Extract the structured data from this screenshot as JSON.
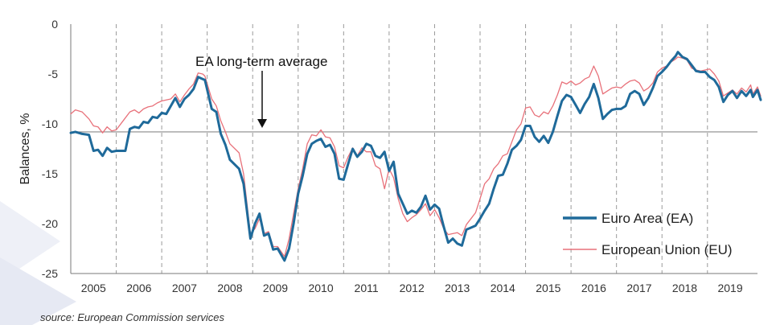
{
  "chart_data": {
    "type": "line",
    "ylabel": "Balances, %",
    "ylim": [
      -25,
      0
    ],
    "yticks": [
      0,
      -5,
      -10,
      -15,
      -20,
      -25
    ],
    "xlim": [
      2004.5,
      2019.6
    ],
    "x_tick_labels": [
      "2005",
      "2006",
      "2007",
      "2008",
      "2009",
      "2010",
      "2011",
      "2012",
      "2013",
      "2014",
      "2015",
      "2016",
      "2017",
      "2018",
      "2019"
    ],
    "grid": "dashed vertical lines at year boundaries",
    "legend_position": "bottom-right",
    "reference_line": {
      "value": -10.8,
      "label": "EA long-term average"
    },
    "series": [
      {
        "name": "Euro Area (EA)",
        "color": "#1f6a9a",
        "points": [
          [
            2004.5,
            -10.9
          ],
          [
            2004.6,
            -10.8
          ],
          [
            2004.75,
            -11.0
          ],
          [
            2004.9,
            -11.1
          ],
          [
            2005.0,
            -12.7
          ],
          [
            2005.1,
            -12.6
          ],
          [
            2005.2,
            -13.2
          ],
          [
            2005.3,
            -12.4
          ],
          [
            2005.4,
            -12.8
          ],
          [
            2005.5,
            -12.7
          ],
          [
            2005.7,
            -12.7
          ],
          [
            2005.8,
            -10.5
          ],
          [
            2005.9,
            -10.3
          ],
          [
            2006.0,
            -10.4
          ],
          [
            2006.1,
            -9.8
          ],
          [
            2006.2,
            -9.9
          ],
          [
            2006.3,
            -9.3
          ],
          [
            2006.4,
            -9.4
          ],
          [
            2006.5,
            -8.9
          ],
          [
            2006.6,
            -9.0
          ],
          [
            2006.7,
            -8.2
          ],
          [
            2006.8,
            -7.4
          ],
          [
            2006.9,
            -8.3
          ],
          [
            2007.0,
            -7.5
          ],
          [
            2007.1,
            -7.1
          ],
          [
            2007.2,
            -6.5
          ],
          [
            2007.3,
            -5.3
          ],
          [
            2007.4,
            -5.5
          ],
          [
            2007.45,
            -5.6
          ],
          [
            2007.6,
            -8.5
          ],
          [
            2007.7,
            -8.8
          ],
          [
            2007.8,
            -11.0
          ],
          [
            2007.9,
            -12.1
          ],
          [
            2008.0,
            -13.6
          ],
          [
            2008.2,
            -14.5
          ],
          [
            2008.3,
            -16.0
          ],
          [
            2008.45,
            -21.5
          ],
          [
            2008.55,
            -20.0
          ],
          [
            2008.65,
            -19.0
          ],
          [
            2008.75,
            -21.2
          ],
          [
            2008.85,
            -21.0
          ],
          [
            2008.95,
            -22.6
          ],
          [
            2009.05,
            -22.5
          ],
          [
            2009.2,
            -23.7
          ],
          [
            2009.3,
            -22.5
          ],
          [
            2009.4,
            -20.0
          ],
          [
            2009.5,
            -17.0
          ],
          [
            2009.6,
            -15.2
          ],
          [
            2009.7,
            -13.0
          ],
          [
            2009.8,
            -12.0
          ],
          [
            2009.9,
            -11.7
          ],
          [
            2010.0,
            -11.5
          ],
          [
            2010.1,
            -12.3
          ],
          [
            2010.2,
            -12.1
          ],
          [
            2010.3,
            -13.0
          ],
          [
            2010.4,
            -15.5
          ],
          [
            2010.5,
            -15.6
          ],
          [
            2010.6,
            -14.0
          ],
          [
            2010.7,
            -12.5
          ],
          [
            2010.8,
            -13.3
          ],
          [
            2010.9,
            -12.8
          ],
          [
            2011.0,
            -12.0
          ],
          [
            2011.1,
            -12.2
          ],
          [
            2011.2,
            -13.2
          ],
          [
            2011.3,
            -13.4
          ],
          [
            2011.4,
            -12.8
          ],
          [
            2011.5,
            -14.7
          ],
          [
            2011.6,
            -13.8
          ],
          [
            2011.7,
            -17.0
          ],
          [
            2011.8,
            -18.0
          ],
          [
            2011.9,
            -19.0
          ],
          [
            2012.0,
            -18.7
          ],
          [
            2012.1,
            -18.9
          ],
          [
            2012.2,
            -18.3
          ],
          [
            2012.3,
            -17.2
          ],
          [
            2012.4,
            -18.6
          ],
          [
            2012.5,
            -18.1
          ],
          [
            2012.6,
            -18.5
          ],
          [
            2012.7,
            -20.3
          ],
          [
            2012.8,
            -21.9
          ],
          [
            2012.9,
            -21.5
          ],
          [
            2013.0,
            -22.0
          ],
          [
            2013.1,
            -22.2
          ],
          [
            2013.2,
            -20.6
          ],
          [
            2013.3,
            -20.4
          ],
          [
            2013.4,
            -20.2
          ],
          [
            2013.5,
            -19.5
          ],
          [
            2013.6,
            -18.7
          ],
          [
            2013.7,
            -18.0
          ],
          [
            2013.8,
            -16.5
          ],
          [
            2013.9,
            -15.2
          ],
          [
            2014.0,
            -15.1
          ],
          [
            2014.1,
            -14.0
          ],
          [
            2014.2,
            -12.6
          ],
          [
            2014.3,
            -12.2
          ],
          [
            2014.4,
            -11.6
          ],
          [
            2014.5,
            -10.2
          ],
          [
            2014.6,
            -10.2
          ],
          [
            2014.7,
            -11.3
          ],
          [
            2014.8,
            -11.8
          ],
          [
            2014.9,
            -11.2
          ],
          [
            2015.0,
            -11.9
          ],
          [
            2015.1,
            -10.8
          ],
          [
            2015.2,
            -9.2
          ],
          [
            2015.3,
            -7.7
          ],
          [
            2015.4,
            -7.1
          ],
          [
            2015.5,
            -7.3
          ],
          [
            2015.6,
            -8.1
          ],
          [
            2015.7,
            -8.9
          ],
          [
            2015.8,
            -8.0
          ],
          [
            2015.9,
            -7.3
          ],
          [
            2016.0,
            -6.0
          ],
          [
            2016.1,
            -7.4
          ],
          [
            2016.2,
            -9.5
          ],
          [
            2016.3,
            -9.0
          ],
          [
            2016.4,
            -8.6
          ],
          [
            2016.5,
            -8.5
          ],
          [
            2016.6,
            -8.5
          ],
          [
            2016.7,
            -8.2
          ],
          [
            2016.8,
            -7.0
          ],
          [
            2016.9,
            -6.7
          ],
          [
            2017.0,
            -7.0
          ],
          [
            2017.1,
            -8.1
          ],
          [
            2017.2,
            -7.4
          ],
          [
            2017.3,
            -6.4
          ],
          [
            2017.4,
            -5.2
          ],
          [
            2017.5,
            -4.8
          ],
          [
            2017.6,
            -4.3
          ],
          [
            2017.7,
            -3.7
          ],
          [
            2017.8,
            -3.2
          ],
          [
            2017.85,
            -2.8
          ],
          [
            2017.95,
            -3.3
          ],
          [
            2018.05,
            -3.5
          ],
          [
            2018.15,
            -4.1
          ],
          [
            2018.25,
            -4.7
          ],
          [
            2018.35,
            -4.8
          ],
          [
            2018.45,
            -4.8
          ],
          [
            2018.55,
            -5.3
          ],
          [
            2018.65,
            -5.6
          ],
          [
            2018.75,
            -6.3
          ],
          [
            2018.85,
            -7.8
          ],
          [
            2018.95,
            -7.1
          ],
          [
            2019.05,
            -6.7
          ],
          [
            2019.15,
            -7.4
          ],
          [
            2019.25,
            -6.7
          ],
          [
            2019.35,
            -7.2
          ],
          [
            2019.45,
            -6.6
          ],
          [
            2019.5,
            -7.3
          ],
          [
            2019.6,
            -6.6
          ],
          [
            2019.67,
            -7.6
          ]
        ]
      },
      {
        "name": "European Union (EU)",
        "color": "#e8717a",
        "points": [
          [
            2004.5,
            -9.0
          ],
          [
            2004.6,
            -8.6
          ],
          [
            2004.75,
            -8.8
          ],
          [
            2004.9,
            -9.5
          ],
          [
            2005.0,
            -10.2
          ],
          [
            2005.1,
            -10.3
          ],
          [
            2005.2,
            -10.9
          ],
          [
            2005.3,
            -10.3
          ],
          [
            2005.4,
            -10.7
          ],
          [
            2005.5,
            -10.6
          ],
          [
            2005.65,
            -9.7
          ],
          [
            2005.8,
            -8.8
          ],
          [
            2005.9,
            -8.6
          ],
          [
            2006.0,
            -8.9
          ],
          [
            2006.1,
            -8.5
          ],
          [
            2006.2,
            -8.3
          ],
          [
            2006.3,
            -8.2
          ],
          [
            2006.4,
            -7.9
          ],
          [
            2006.5,
            -7.7
          ],
          [
            2006.6,
            -7.6
          ],
          [
            2006.7,
            -7.5
          ],
          [
            2006.8,
            -7.0
          ],
          [
            2006.9,
            -7.8
          ],
          [
            2007.0,
            -7.1
          ],
          [
            2007.1,
            -6.5
          ],
          [
            2007.2,
            -6.0
          ],
          [
            2007.3,
            -4.9
          ],
          [
            2007.4,
            -5.0
          ],
          [
            2007.45,
            -5.2
          ],
          [
            2007.6,
            -7.5
          ],
          [
            2007.7,
            -8.2
          ],
          [
            2007.8,
            -9.7
          ],
          [
            2007.9,
            -10.8
          ],
          [
            2008.0,
            -12.0
          ],
          [
            2008.2,
            -12.9
          ],
          [
            2008.3,
            -15.0
          ],
          [
            2008.45,
            -21.0
          ],
          [
            2008.55,
            -20.5
          ],
          [
            2008.65,
            -19.5
          ],
          [
            2008.75,
            -21.0
          ],
          [
            2008.85,
            -20.8
          ],
          [
            2008.95,
            -22.3
          ],
          [
            2009.05,
            -22.3
          ],
          [
            2009.2,
            -23.3
          ],
          [
            2009.3,
            -21.5
          ],
          [
            2009.4,
            -19.0
          ],
          [
            2009.5,
            -16.5
          ],
          [
            2009.6,
            -14.5
          ],
          [
            2009.7,
            -12.0
          ],
          [
            2009.8,
            -11.1
          ],
          [
            2009.9,
            -11.2
          ],
          [
            2010.0,
            -10.6
          ],
          [
            2010.1,
            -11.3
          ],
          [
            2010.2,
            -11.4
          ],
          [
            2010.3,
            -12.3
          ],
          [
            2010.4,
            -14.2
          ],
          [
            2010.5,
            -14.4
          ],
          [
            2010.6,
            -13.3
          ],
          [
            2010.7,
            -12.4
          ],
          [
            2010.8,
            -13.2
          ],
          [
            2010.9,
            -12.4
          ],
          [
            2011.0,
            -12.8
          ],
          [
            2011.1,
            -12.8
          ],
          [
            2011.2,
            -14.2
          ],
          [
            2011.3,
            -14.5
          ],
          [
            2011.4,
            -16.5
          ],
          [
            2011.5,
            -14.5
          ],
          [
            2011.6,
            -15.4
          ],
          [
            2011.7,
            -17.5
          ],
          [
            2011.8,
            -19.0
          ],
          [
            2011.9,
            -19.8
          ],
          [
            2012.0,
            -19.4
          ],
          [
            2012.1,
            -19.1
          ],
          [
            2012.2,
            -18.6
          ],
          [
            2012.3,
            -18.0
          ],
          [
            2012.4,
            -19.2
          ],
          [
            2012.5,
            -18.6
          ],
          [
            2012.6,
            -19.4
          ],
          [
            2012.7,
            -20.5
          ],
          [
            2012.8,
            -21.1
          ],
          [
            2012.9,
            -21.0
          ],
          [
            2013.0,
            -20.9
          ],
          [
            2013.1,
            -21.2
          ],
          [
            2013.2,
            -20.1
          ],
          [
            2013.3,
            -19.5
          ],
          [
            2013.4,
            -18.9
          ],
          [
            2013.5,
            -17.5
          ],
          [
            2013.6,
            -16.0
          ],
          [
            2013.7,
            -15.5
          ],
          [
            2013.8,
            -14.5
          ],
          [
            2013.9,
            -14.0
          ],
          [
            2014.0,
            -13.2
          ],
          [
            2014.1,
            -13.0
          ],
          [
            2014.2,
            -11.8
          ],
          [
            2014.3,
            -10.6
          ],
          [
            2014.4,
            -10.0
          ],
          [
            2014.5,
            -8.4
          ],
          [
            2014.6,
            -8.3
          ],
          [
            2014.7,
            -9.1
          ],
          [
            2014.8,
            -9.3
          ],
          [
            2014.9,
            -8.8
          ],
          [
            2015.0,
            -9.0
          ],
          [
            2015.1,
            -8.2
          ],
          [
            2015.2,
            -7.1
          ],
          [
            2015.3,
            -5.8
          ],
          [
            2015.4,
            -6.0
          ],
          [
            2015.5,
            -5.7
          ],
          [
            2015.6,
            -6.1
          ],
          [
            2015.7,
            -5.9
          ],
          [
            2015.8,
            -5.5
          ],
          [
            2015.9,
            -5.3
          ],
          [
            2016.0,
            -4.2
          ],
          [
            2016.1,
            -5.2
          ],
          [
            2016.2,
            -7.0
          ],
          [
            2016.3,
            -6.7
          ],
          [
            2016.4,
            -6.4
          ],
          [
            2016.5,
            -6.3
          ],
          [
            2016.6,
            -6.4
          ],
          [
            2016.7,
            -6.0
          ],
          [
            2016.8,
            -5.7
          ],
          [
            2016.9,
            -5.6
          ],
          [
            2017.0,
            -5.9
          ],
          [
            2017.1,
            -6.7
          ],
          [
            2017.2,
            -6.4
          ],
          [
            2017.3,
            -5.9
          ],
          [
            2017.4,
            -4.8
          ],
          [
            2017.5,
            -4.4
          ],
          [
            2017.6,
            -4.2
          ],
          [
            2017.7,
            -3.8
          ],
          [
            2017.8,
            -3.5
          ],
          [
            2017.85,
            -3.3
          ],
          [
            2017.95,
            -3.4
          ],
          [
            2018.05,
            -3.6
          ],
          [
            2018.15,
            -4.4
          ],
          [
            2018.25,
            -4.6
          ],
          [
            2018.35,
            -4.7
          ],
          [
            2018.45,
            -4.6
          ],
          [
            2018.55,
            -4.5
          ],
          [
            2018.65,
            -5.0
          ],
          [
            2018.75,
            -5.7
          ],
          [
            2018.85,
            -7.2
          ],
          [
            2018.95,
            -6.9
          ],
          [
            2019.05,
            -6.6
          ],
          [
            2019.15,
            -7.0
          ],
          [
            2019.25,
            -6.4
          ],
          [
            2019.35,
            -6.8
          ],
          [
            2019.45,
            -6.1
          ],
          [
            2019.5,
            -7.0
          ],
          [
            2019.6,
            -6.3
          ],
          [
            2019.67,
            -7.2
          ]
        ]
      }
    ]
  },
  "source_text": "source: European Commission services"
}
